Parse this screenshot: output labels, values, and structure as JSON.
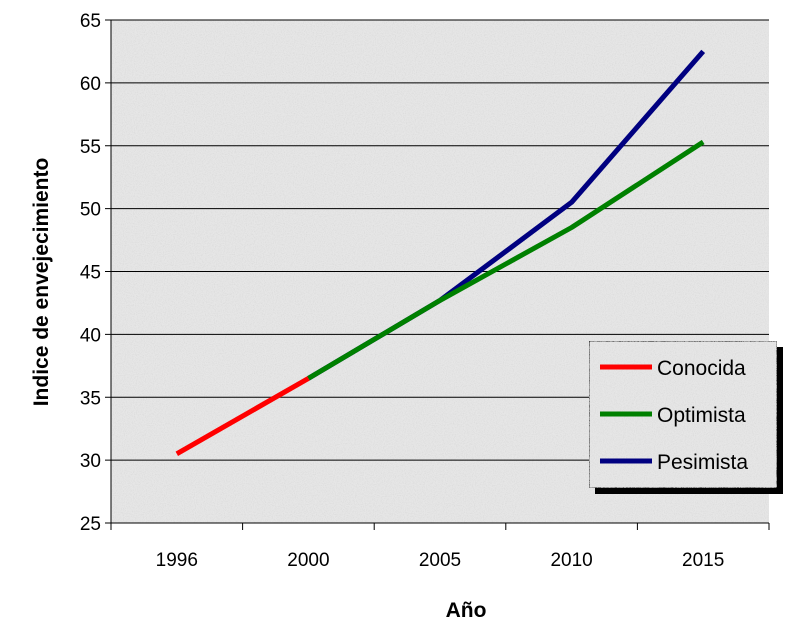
{
  "chart_data": {
    "type": "line",
    "xlabel": "Año",
    "ylabel": "Indice de envejecimiento",
    "categories": [
      "1996",
      "2000",
      "2005",
      "2010",
      "2015"
    ],
    "ylim": [
      25,
      65
    ],
    "yticks": [
      25,
      30,
      35,
      40,
      45,
      50,
      55,
      60,
      65
    ],
    "grid": true,
    "legend_position": "bottom-right",
    "series": [
      {
        "name": "Conocida",
        "color": "#ff0000",
        "points": [
          [
            0,
            30.5
          ],
          [
            1,
            36.5
          ]
        ]
      },
      {
        "name": "Optimista",
        "color": "#008000",
        "points": [
          [
            1,
            36.5
          ],
          [
            2,
            42.7
          ],
          [
            3,
            48.5
          ],
          [
            4,
            55.3
          ]
        ]
      },
      {
        "name": "Pesimista",
        "color": "#000080",
        "points": [
          [
            1,
            36.5
          ],
          [
            2,
            42.7
          ],
          [
            3,
            50.5
          ],
          [
            4,
            62.5
          ]
        ]
      }
    ]
  }
}
